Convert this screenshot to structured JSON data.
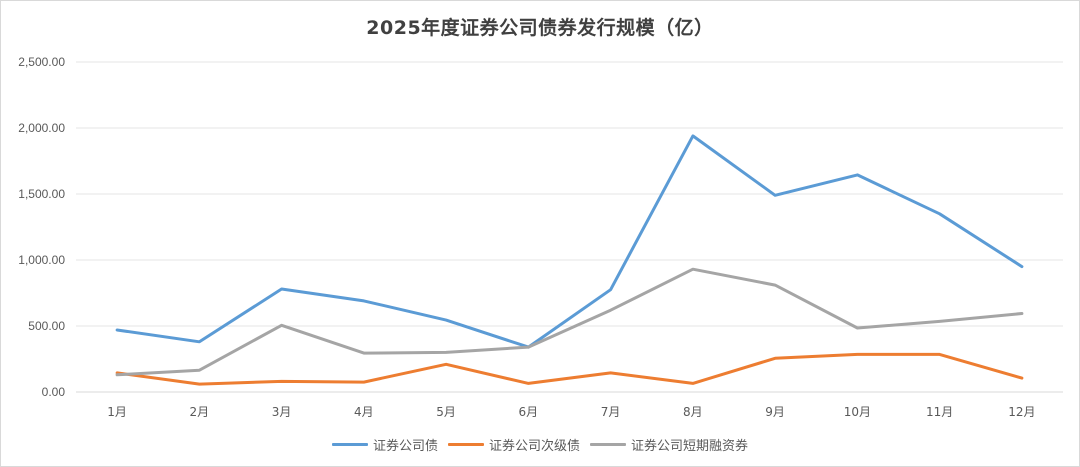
{
  "chart_data": {
    "type": "line",
    "title": "2025年度证券公司债券发行规模（亿）",
    "xlabel": "",
    "ylabel": "",
    "ylim": [
      0,
      2500
    ],
    "yticks": [
      "0.00",
      "500.00",
      "1,000.00",
      "1,500.00",
      "2,000.00",
      "2,500.00"
    ],
    "grid": true,
    "legend_position": "bottom",
    "categories": [
      "1月",
      "2月",
      "3月",
      "4月",
      "5月",
      "6月",
      "7月",
      "8月",
      "9月",
      "10月",
      "11月",
      "12月"
    ],
    "series": [
      {
        "name": "证券公司债",
        "color": "#5b9bd5",
        "values": [
          470,
          380,
          780,
          690,
          545,
          340,
          775,
          1940,
          1490,
          1645,
          1350,
          950
        ]
      },
      {
        "name": "证券公司次级债",
        "color": "#ed7d31",
        "values": [
          145,
          60,
          80,
          75,
          210,
          65,
          145,
          65,
          255,
          285,
          285,
          105
        ]
      },
      {
        "name": "证券公司短期融资券",
        "color": "#a5a5a5",
        "values": [
          130,
          165,
          505,
          295,
          300,
          340,
          620,
          930,
          810,
          485,
          535,
          595
        ]
      }
    ]
  }
}
